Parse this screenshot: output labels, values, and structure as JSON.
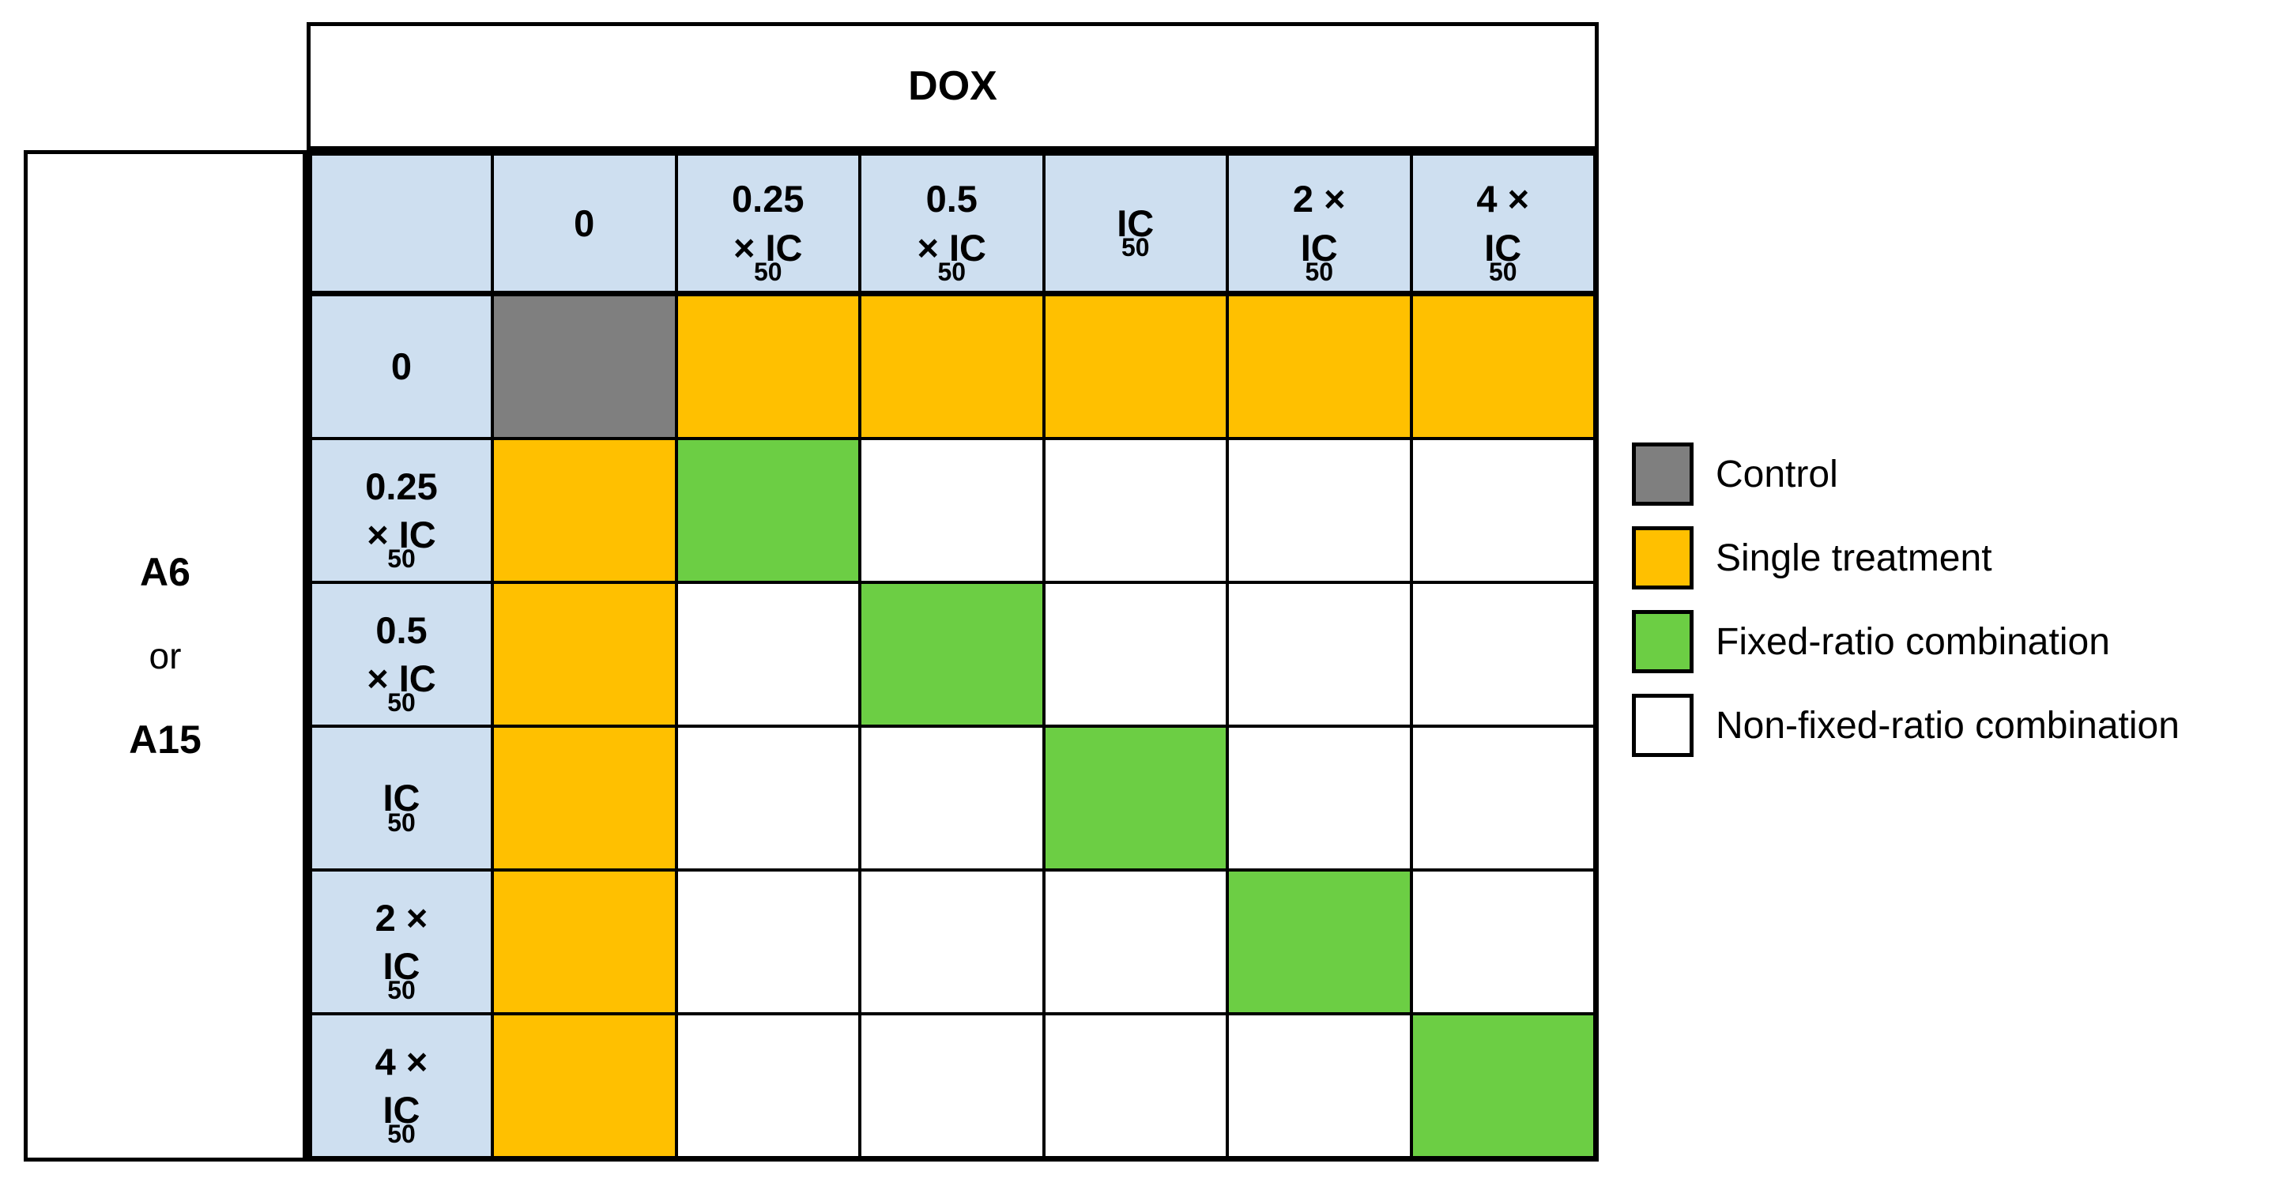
{
  "figure": {
    "top_header": "DOX",
    "left_labels": [
      "A6",
      "or",
      "A15"
    ]
  },
  "table": {
    "corner_label": "",
    "col_headers": [
      "0",
      "0.25\n× IC~50~",
      "0.5\n× IC~50~",
      "IC~50~",
      "2 ×\nIC~50~",
      "4 ×\nIC~50~"
    ],
    "row_headers": [
      "0",
      "0.25\n× IC~50~",
      "0.5\n× IC~50~",
      "IC~50~",
      "2 ×\nIC~50~",
      "4 ×\nIC~50~"
    ],
    "grid": [
      [
        "C",
        "S",
        "S",
        "S",
        "S",
        "S"
      ],
      [
        "S",
        "F",
        "N",
        "N",
        "N",
        "N"
      ],
      [
        "S",
        "N",
        "F",
        "N",
        "N",
        "N"
      ],
      [
        "S",
        "N",
        "N",
        "F",
        "N",
        "N"
      ],
      [
        "S",
        "N",
        "N",
        "N",
        "F",
        "N"
      ],
      [
        "S",
        "N",
        "N",
        "N",
        "N",
        "F"
      ]
    ],
    "code_to_color": {
      "C": "control",
      "S": "single",
      "F": "fixed",
      "N": "non_fixed"
    }
  },
  "legend": {
    "items": [
      {
        "label": "Control",
        "code": "C"
      },
      {
        "label": "Single treatment",
        "code": "S"
      },
      {
        "label": "Fixed-ratio combination",
        "code": "F"
      },
      {
        "label": "Non-fixed-ratio combination",
        "code": "N"
      }
    ]
  },
  "colors": {
    "control": "#7F7F7F",
    "single": "#FFC000",
    "fixed": "#6CCE44",
    "non_fixed": "#FFFFFF",
    "header_bg": "#CEDFF0",
    "border": "#000000"
  }
}
